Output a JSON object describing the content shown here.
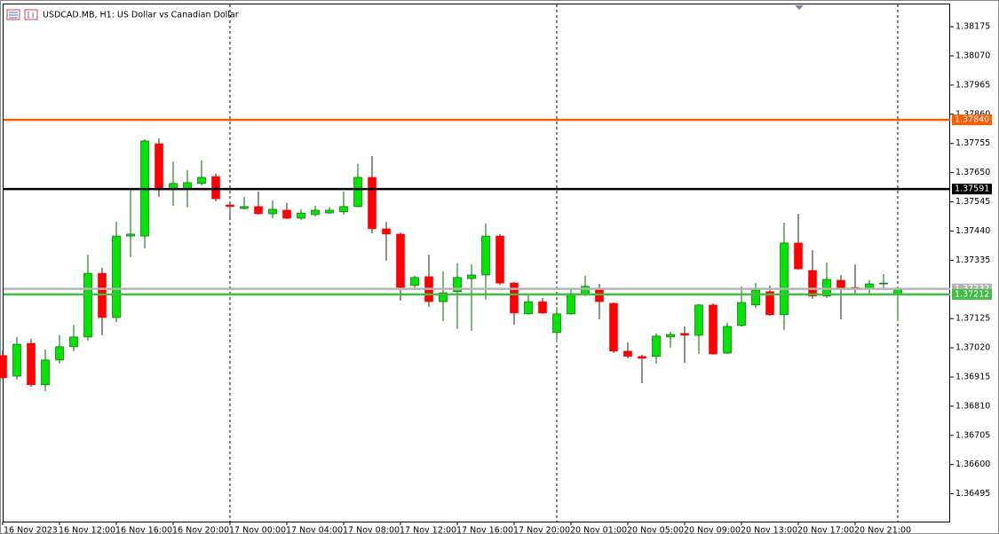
{
  "chart_data": {
    "type": "candlestick",
    "title": "USDCAD.MB, H1:  US Dollar vs Canadian Dollar",
    "categories": [
      "16 Nov 2023",
      null,
      null,
      null,
      "16 Nov 12:00",
      null,
      null,
      null,
      "16 Nov 16:00",
      null,
      null,
      null,
      "16 Nov 20:00",
      null,
      null,
      null,
      "17 Nov 00:00",
      null,
      null,
      null,
      "17 Nov 04:00",
      null,
      null,
      null,
      "17 Nov 08:00",
      null,
      null,
      null,
      "17 Nov 12:00",
      null,
      null,
      null,
      "17 Nov 16:00",
      null,
      null,
      null,
      "17 Nov 20:00",
      null,
      null,
      null,
      "20 Nov 01:00",
      null,
      null,
      null,
      "20 Nov 05:00",
      null,
      null,
      null,
      "20 Nov 09:00",
      null,
      null,
      null,
      "20 Nov 13:00",
      null,
      null,
      null,
      "20 Nov 17:00",
      null,
      null,
      null,
      "20 Nov 21:00",
      null,
      null,
      null
    ],
    "open": [
      1.36992,
      1.36918,
      1.37036,
      1.36887,
      1.36976,
      1.37024,
      1.37059,
      1.37288,
      1.37129,
      1.37422,
      1.37422,
      1.37754,
      1.37591,
      1.37591,
      1.37611,
      1.37636,
      1.37534,
      1.37521,
      1.37528,
      1.37502,
      1.37515,
      1.37486,
      1.37499,
      1.37505,
      1.37509,
      1.37528,
      1.37633,
      1.37448,
      1.37429,
      1.37244,
      1.37276,
      1.37186,
      1.37222,
      1.37269,
      1.37282,
      1.37422,
      1.37253,
      1.37142,
      1.37186,
      1.37075,
      1.37142,
      1.37212,
      1.37234,
      1.3718,
      1.37008,
      1.36989,
      1.36989,
      1.37059,
      1.37072,
      1.37065,
      1.37174,
      1.37001,
      1.371,
      1.37174,
      1.37222,
      1.37139,
      1.37397,
      1.37298,
      1.37206,
      1.37263,
      1.37237,
      1.37234,
      1.3725,
      1.37212
    ],
    "high": [
      1.37011,
      1.37059,
      1.37052,
      1.37014,
      1.37065,
      1.37103,
      1.37355,
      1.37308,
      1.37473,
      1.37588,
      1.3777,
      1.37773,
      1.3769,
      1.37659,
      1.37694,
      1.37646,
      1.37537,
      1.37563,
      1.37582,
      1.3755,
      1.37541,
      1.37518,
      1.37531,
      1.37525,
      1.37582,
      1.37681,
      1.3771,
      1.37473,
      1.37435,
      1.37279,
      1.37355,
      1.37295,
      1.37324,
      1.3732,
      1.37467,
      1.37429,
      1.37257,
      1.37209,
      1.37199,
      1.37167,
      1.37234,
      1.37279,
      1.3725,
      1.37183,
      1.3704,
      1.36995,
      1.37072,
      1.37078,
      1.37097,
      1.37177,
      1.3718,
      1.3711,
      1.37241,
      1.37253,
      1.37244,
      1.3747,
      1.37502,
      1.37371,
      1.37327,
      1.37282,
      1.3732,
      1.37263,
      1.37285,
      1.37241
    ],
    "low": [
      1.36906,
      1.36906,
      1.3688,
      1.36864,
      1.36963,
      1.37008,
      1.37046,
      1.37065,
      1.37113,
      1.37346,
      1.37378,
      1.37563,
      1.37531,
      1.37525,
      1.37604,
      1.37547,
      1.37486,
      1.37518,
      1.37499,
      1.37486,
      1.37483,
      1.3748,
      1.37493,
      1.37502,
      1.37499,
      1.37525,
      1.37432,
      1.37333,
      1.3719,
      1.37228,
      1.37167,
      1.37116,
      1.37088,
      1.37081,
      1.37193,
      1.37247,
      1.37103,
      1.37139,
      1.37142,
      1.3704,
      1.37139,
      1.37206,
      1.37123,
      1.37001,
      1.36982,
      1.36893,
      1.36963,
      1.37021,
      1.36966,
      1.36998,
      1.36995,
      1.36998,
      1.37097,
      1.37164,
      1.37135,
      1.37084,
      1.37301,
      1.37196,
      1.37199,
      1.37123,
      1.37212,
      1.37209,
      1.37234,
      1.37116
    ],
    "close": [
      1.36912,
      1.37033,
      1.36887,
      1.36976,
      1.37024,
      1.37059,
      1.37288,
      1.37129,
      1.37422,
      1.37429,
      1.37764,
      1.37588,
      1.37611,
      1.37614,
      1.37633,
      1.37556,
      1.37528,
      1.37528,
      1.37502,
      1.37518,
      1.37486,
      1.37505,
      1.37515,
      1.37515,
      1.37528,
      1.37633,
      1.37448,
      1.37429,
      1.37237,
      1.37273,
      1.37186,
      1.37218,
      1.37273,
      1.37282,
      1.37422,
      1.37253,
      1.37145,
      1.37186,
      1.37145,
      1.37142,
      1.37215,
      1.37241,
      1.37186,
      1.37008,
      1.36989,
      1.36982,
      1.37062,
      1.37068,
      1.37065,
      1.37174,
      1.36998,
      1.37097,
      1.37183,
      1.37228,
      1.37139,
      1.37397,
      1.37304,
      1.37206,
      1.37266,
      1.37231,
      1.37231,
      1.3725,
      1.37253,
      1.37234
    ],
    "up_color": "#00e600",
    "down_color": "#ff0000",
    "ylim": [
      1.36395,
      1.38255
    ],
    "yticks": [
      1.38175,
      {
        "value": 1.3807,
        "label": "1.38070"
      },
      1.37965,
      {
        "value": 1.3786,
        "label": "1.37860"
      },
      1.37755,
      {
        "value": 1.3765,
        "label": "1.37650"
      },
      1.37545,
      {
        "value": 1.3744,
        "label": "1.37440"
      },
      1.37335,
      1.37125,
      {
        "value": 1.3702,
        "label": "1.37020"
      },
      1.36915,
      {
        "value": 1.3681,
        "label": "1.36810"
      },
      1.36705,
      {
        "value": 1.366,
        "label": "1.36600"
      },
      1.36495
    ],
    "levels": [
      {
        "value": 1.3784,
        "label": "1.37840",
        "color": "#ff5a00"
      },
      {
        "value": 1.37591,
        "label": "1.37591",
        "color": "#000000"
      },
      {
        "value": 1.37232,
        "label": "1.37232",
        "color": "#b4b4b4"
      },
      {
        "value": 1.37212,
        "label": "1.37212",
        "color": "#44bb44"
      }
    ],
    "grid": false
  }
}
